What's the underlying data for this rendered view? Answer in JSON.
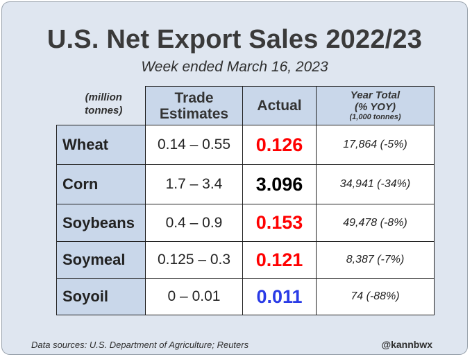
{
  "title": "U.S. Net Export Sales 2022/23",
  "subtitle": "Week ended March 16, 2023",
  "header": {
    "unit_line1": "(million",
    "unit_line2": "tonnes)",
    "trade_line1": "Trade",
    "trade_line2": "Estimates",
    "actual": "Actual",
    "year_line1": "Year Total",
    "year_line2": "(% YOY)",
    "year_line3": "(1,000 tonnes)"
  },
  "rows": [
    {
      "commodity": "Wheat",
      "trade": "0.14 – 0.55",
      "actual": "0.126",
      "actual_color": "#ff0000",
      "year": "17,864 (-5%)"
    },
    {
      "commodity": "Corn",
      "trade": "1.7 – 3.4",
      "actual": "3.096",
      "actual_color": "#000000",
      "year": "34,941 (-34%)"
    },
    {
      "commodity": "Soybeans",
      "trade": "0.4 – 0.9",
      "actual": "0.153",
      "actual_color": "#ff0000",
      "year": "49,478 (-8%)"
    },
    {
      "commodity": "Soymeal",
      "trade": "0.125 – 0.3",
      "actual": "0.121",
      "actual_color": "#ff0000",
      "year": "8,387 (-7%)"
    },
    {
      "commodity": "Soyoil",
      "trade": "0 – 0.01",
      "actual": "0.011",
      "actual_color": "#2a3be6",
      "year": "74 (-88%)"
    }
  ],
  "footer": {
    "sources": "Data sources: U.S. Department of Agriculture; Reuters",
    "handle": "@kannbwx"
  }
}
